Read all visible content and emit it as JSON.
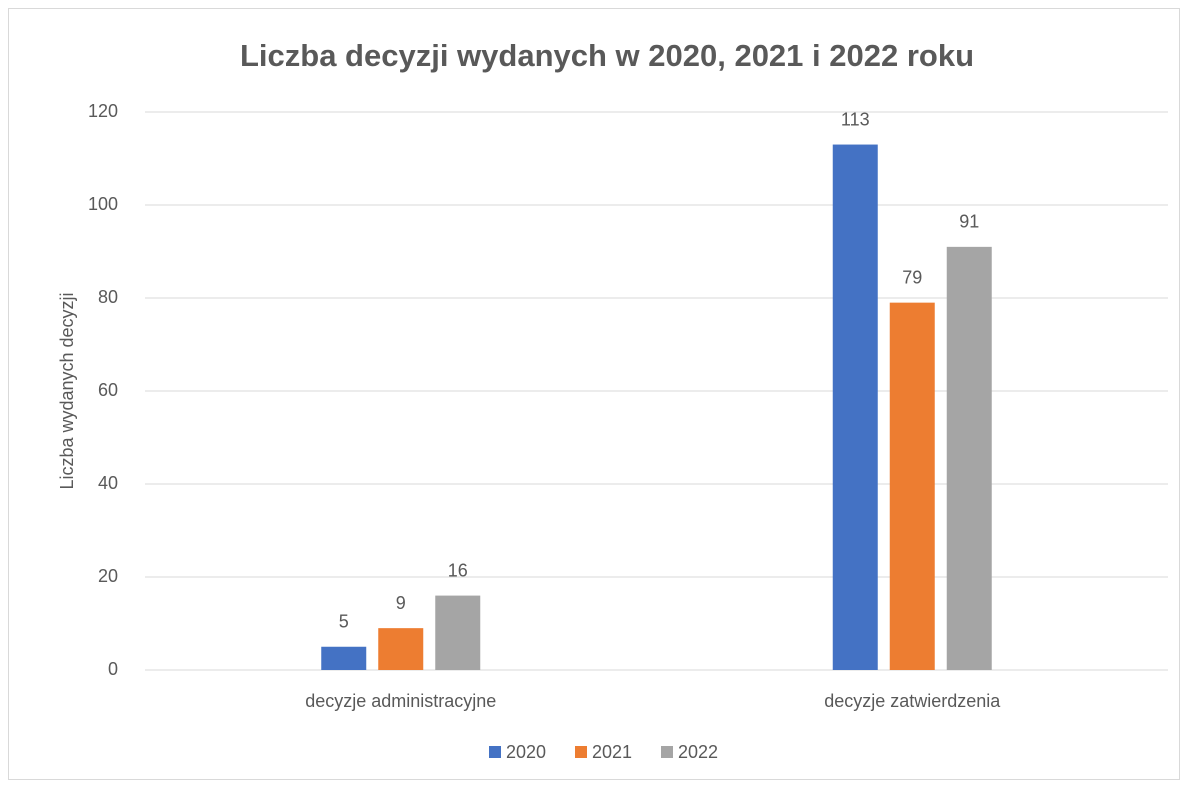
{
  "chart_data": {
    "type": "bar",
    "title": "Liczba decyzji wydanych w 2020, 2021 i 2022 roku",
    "y_label": "Liczba wydanych decyzji",
    "categories": [
      "decyzje administracyjne",
      "decyzje zatwierdzenia"
    ],
    "series": [
      {
        "name": "2020",
        "color": "#4472c4",
        "values": [
          5,
          113
        ]
      },
      {
        "name": "2021",
        "color": "#ed7d31",
        "values": [
          9,
          79
        ]
      },
      {
        "name": "2022",
        "color": "#a5a5a5",
        "values": [
          16,
          91
        ]
      }
    ],
    "ylim": [
      0,
      120
    ],
    "yticks": [
      0,
      20,
      40,
      60,
      80,
      100,
      120
    ],
    "grid": true,
    "legend": "bottom"
  }
}
